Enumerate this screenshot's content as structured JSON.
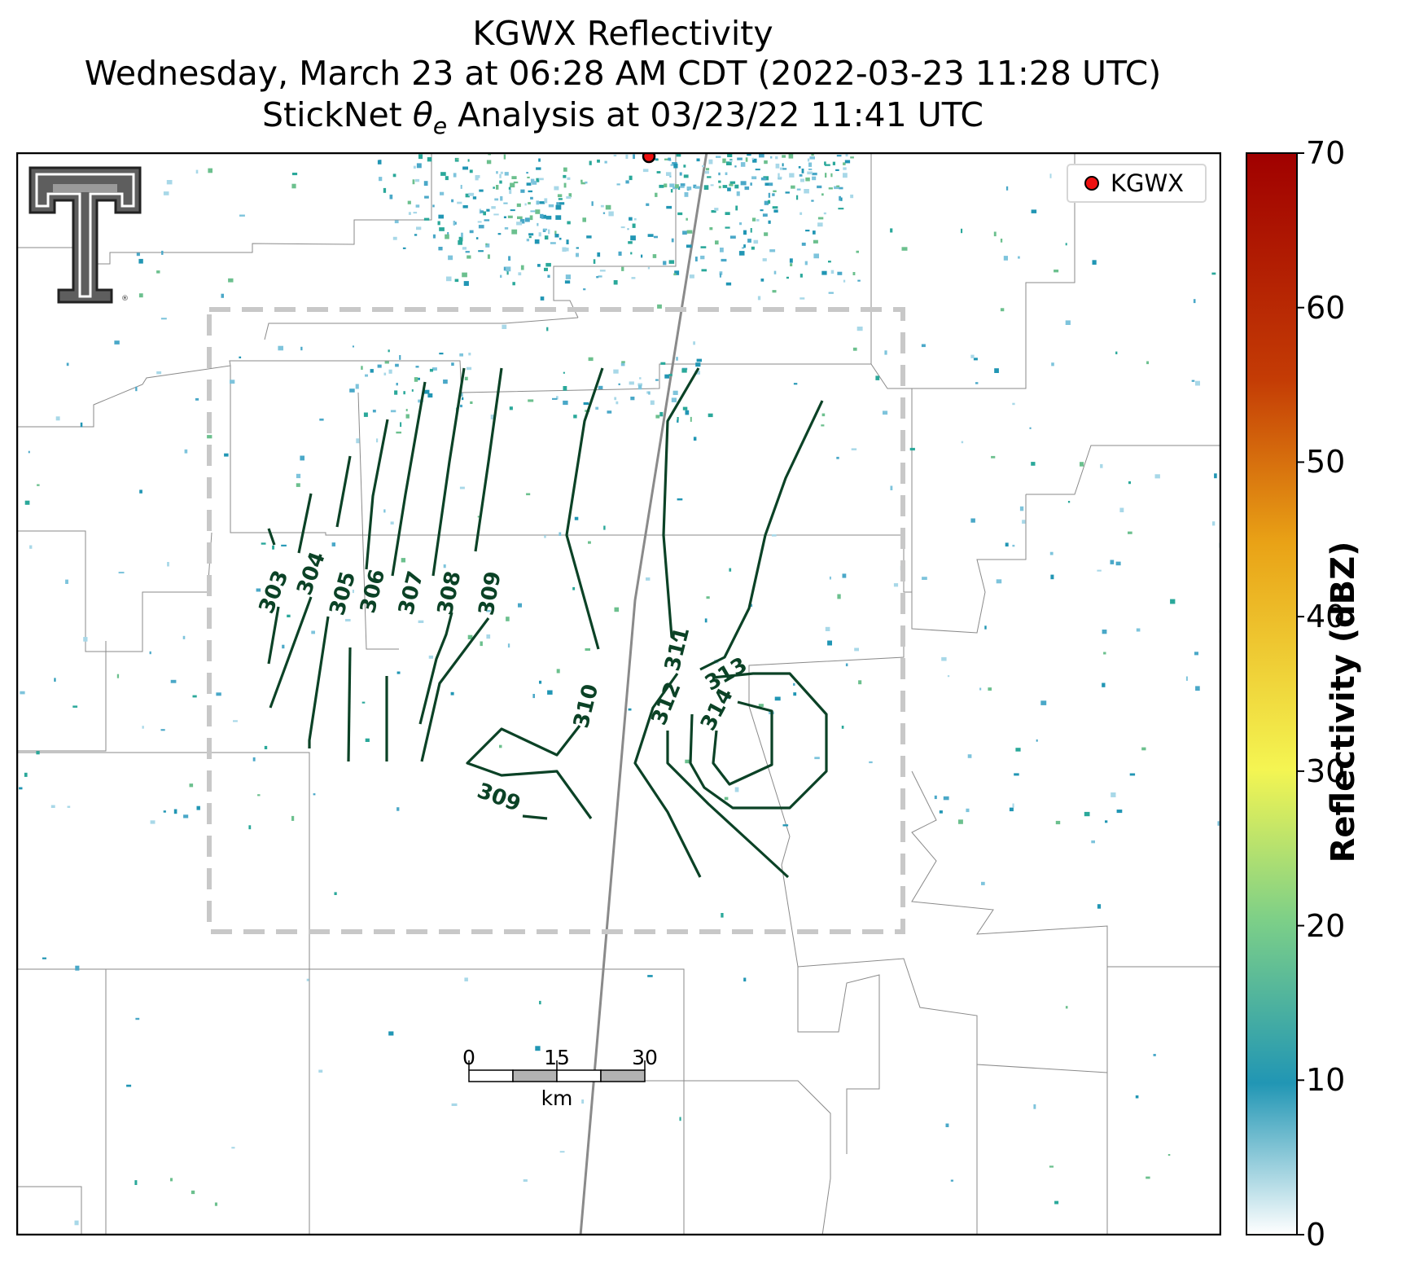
{
  "title": {
    "line1": "KGWX Reflectivity",
    "line2": "Wednesday, March 23 at 06:28 AM CDT (2022-03-23 11:28 UTC)",
    "line3_prefix": "StickNet ",
    "line3_symbol": "θ",
    "line3_subscript": "e",
    "line3_suffix": " Analysis at 03/23/22 11:41 UTC"
  },
  "legend": {
    "marker_color": "#ee1111",
    "label": "KGWX"
  },
  "radar_site": {
    "name": "KGWX",
    "marker_color": "#ee1111"
  },
  "logo": {
    "name": "texas-tech-double-t-logo",
    "mark": "®"
  },
  "colorbar": {
    "label": "Reflectivity (dBZ)",
    "min": 0,
    "max": 70,
    "ticks": [
      "0",
      "10",
      "20",
      "30",
      "40",
      "50",
      "60",
      "70"
    ],
    "stops": [
      "#ffffff",
      "#2196b4",
      "#7ccf88",
      "#f4f552",
      "#e9a216",
      "#c43c05",
      "#a00000"
    ]
  },
  "contour": {
    "color": "#0b4226",
    "levels": [
      {
        "label": "303"
      },
      {
        "label": "304"
      },
      {
        "label": "305"
      },
      {
        "label": "306"
      },
      {
        "label": "307"
      },
      {
        "label": "308"
      },
      {
        "label": "309"
      },
      {
        "label": "309"
      },
      {
        "label": "310"
      },
      {
        "label": "311"
      },
      {
        "label": "312"
      },
      {
        "label": "313"
      },
      {
        "label": "314"
      }
    ]
  },
  "analysis_domain": {
    "style": "dashed",
    "color": "#c8c8c8"
  },
  "scalebar": {
    "ticks": [
      "0",
      "15",
      "30"
    ],
    "unit": "km"
  }
}
